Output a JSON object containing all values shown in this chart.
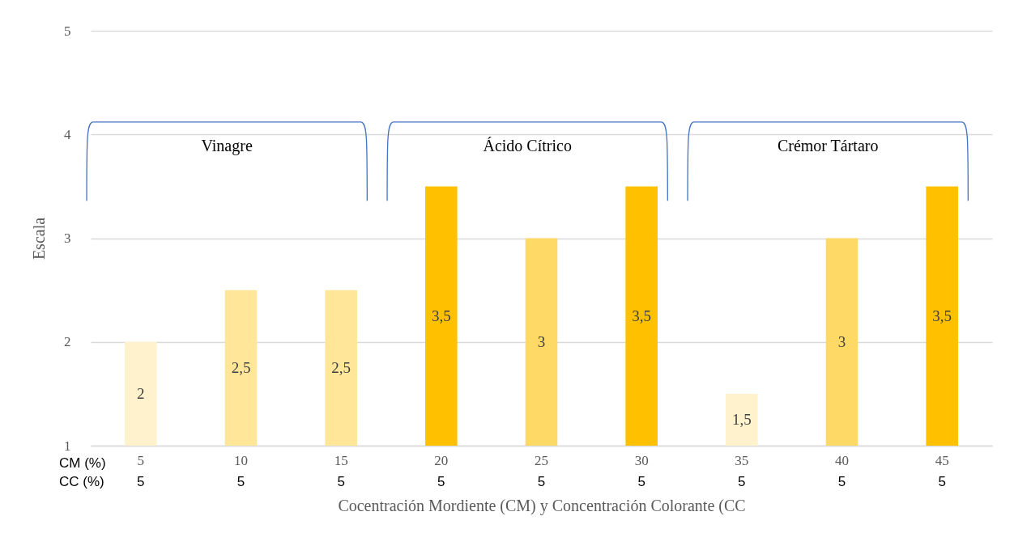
{
  "chart_data": {
    "type": "bar",
    "xlabel": "Cocentración Mordiente (CM) y Concentración Colorante (CC",
    "ylabel": "Escala",
    "categories": [
      "5",
      "10",
      "15",
      "20",
      "25",
      "30",
      "35",
      "40",
      "45"
    ],
    "values": [
      2,
      2.5,
      2.5,
      3.5,
      3,
      3.5,
      1.5,
      3,
      3.5
    ],
    "colors": [
      "#fff2cc",
      "#ffe699",
      "#ffe699",
      "#ffc000",
      "#ffd966",
      "#ffc000",
      "#fff2cc",
      "#ffd966",
      "#ffc000"
    ],
    "value_labels": [
      "2",
      "2,5",
      "2,5",
      "3,5",
      "3",
      "3,5",
      "1,5",
      "3",
      "3,5"
    ],
    "ylim": [
      1,
      5
    ],
    "yticks": [
      1,
      2,
      3,
      4,
      5
    ],
    "grid": "y",
    "annotations": [
      "Vinagre",
      "Ácido Cítrico",
      "Crémor Tártaro",
      "CM (%)",
      "CC (%)",
      "5",
      "5",
      "5",
      "5",
      "5",
      "5",
      "5",
      "5",
      "5"
    ]
  }
}
